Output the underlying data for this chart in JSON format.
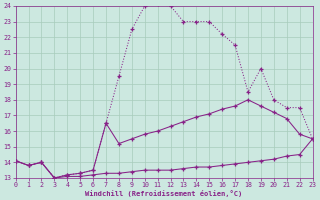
{
  "background_color": "#cce8e0",
  "grid_color": "#a8ccbb",
  "line_color": "#882288",
  "xlabel": "Windchill (Refroidissement éolien,°C)",
  "xlabel_color": "#882288",
  "tick_color": "#882288",
  "xmin": 0,
  "xmax": 23,
  "ymin": 13,
  "ymax": 24,
  "line1_x": [
    0,
    1,
    2,
    3,
    4,
    5,
    6,
    7,
    8,
    9,
    10,
    11,
    12,
    13,
    14,
    15,
    16,
    17,
    18,
    19,
    20,
    21,
    22,
    23
  ],
  "line1_y": [
    14.1,
    13.8,
    14.0,
    13.0,
    13.1,
    13.1,
    13.2,
    13.3,
    13.3,
    13.4,
    13.5,
    13.5,
    13.5,
    13.6,
    13.7,
    13.7,
    13.8,
    13.9,
    14.0,
    14.1,
    14.2,
    14.4,
    14.5,
    15.5
  ],
  "line2_x": [
    0,
    1,
    2,
    3,
    4,
    5,
    6,
    7,
    8,
    9,
    10,
    11,
    12,
    13,
    14,
    15,
    16,
    17,
    18,
    19,
    20,
    21,
    22,
    23
  ],
  "line2_y": [
    14.1,
    13.8,
    14.0,
    13.0,
    13.2,
    13.3,
    13.5,
    16.5,
    15.2,
    15.5,
    15.8,
    16.0,
    16.3,
    16.6,
    16.9,
    17.1,
    17.4,
    17.6,
    18.0,
    17.6,
    17.2,
    16.8,
    15.8,
    15.5
  ],
  "line3_x": [
    0,
    1,
    2,
    3,
    4,
    5,
    6,
    7,
    8,
    9,
    10,
    11,
    12,
    13,
    14,
    15,
    16,
    17,
    18,
    19,
    20,
    21,
    22,
    23
  ],
  "line3_y": [
    14.1,
    13.8,
    14.0,
    13.0,
    13.2,
    13.3,
    13.5,
    16.5,
    19.5,
    22.5,
    24.0,
    24.1,
    24.0,
    23.0,
    23.0,
    23.0,
    22.2,
    21.5,
    18.5,
    20.0,
    18.0,
    17.5,
    17.5,
    15.5
  ]
}
